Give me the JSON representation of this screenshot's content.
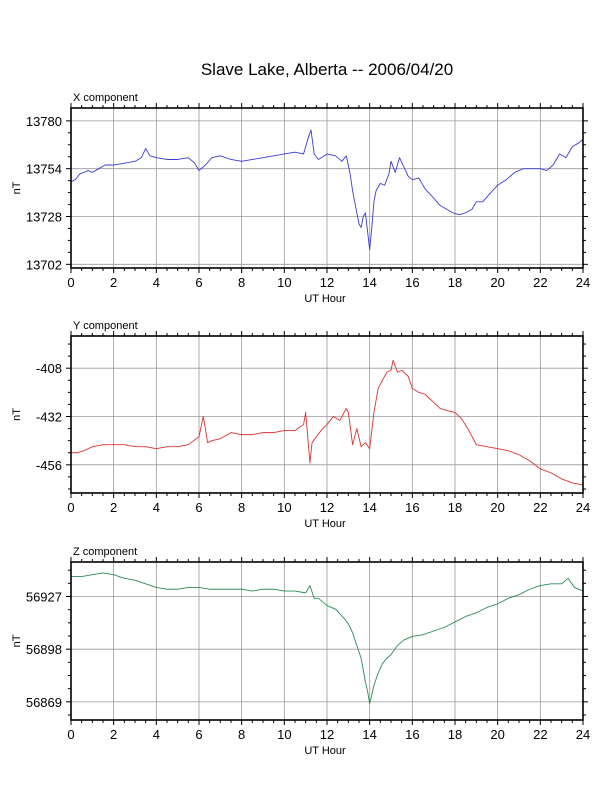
{
  "title": "Slave Lake, Alberta -- 2006/04/20",
  "chart_data": [
    {
      "type": "line",
      "panel_label": "X component",
      "xlabel": "UT Hour",
      "ylabel": "nT",
      "xlim": [
        0,
        24
      ],
      "ylim": [
        13700,
        13787
      ],
      "xticks": [
        0,
        2,
        4,
        6,
        8,
        10,
        12,
        14,
        16,
        18,
        20,
        22,
        24
      ],
      "yticks": [
        13702,
        13728,
        13754,
        13780
      ],
      "grid": true,
      "color": "#3a3ad8",
      "series": [
        {
          "x": [
            0,
            0.2,
            0.4,
            0.6,
            0.8,
            1.0,
            1.3,
            1.6,
            2.0,
            2.5,
            3.0,
            3.3,
            3.5,
            3.7,
            4.0,
            4.5,
            5.0,
            5.5,
            5.8,
            6.0,
            6.3,
            6.6,
            7.0,
            7.5,
            8.0,
            8.5,
            9.0,
            9.5,
            10.0,
            10.5,
            10.9,
            11.1,
            11.25,
            11.4,
            11.6,
            12.0,
            12.4,
            12.7,
            12.9,
            13.0,
            13.1,
            13.2,
            13.3,
            13.4,
            13.5,
            13.6,
            13.7,
            13.8,
            13.9,
            14.0,
            14.1,
            14.2,
            14.3,
            14.5,
            14.7,
            14.9,
            15.0,
            15.2,
            15.4,
            15.6,
            15.8,
            16.0,
            16.3,
            16.6,
            17.0,
            17.3,
            17.6,
            17.9,
            18.2,
            18.5,
            18.8,
            19.0,
            19.3,
            19.6,
            20.0,
            20.4,
            20.8,
            21.2,
            21.6,
            22.0,
            22.3,
            22.6,
            22.9,
            23.2,
            23.5,
            23.8,
            24.0
          ],
          "y": [
            13747,
            13748,
            13751,
            13752,
            13753,
            13752,
            13754,
            13756,
            13756,
            13757,
            13758,
            13760,
            13765,
            13761,
            13760,
            13759,
            13759,
            13760,
            13757,
            13753,
            13756,
            13760,
            13761,
            13759,
            13758,
            13759,
            13760,
            13761,
            13762,
            13763,
            13762,
            13770,
            13775,
            13762,
            13759,
            13762,
            13761,
            13758,
            13761,
            13756,
            13750,
            13742,
            13736,
            13730,
            13724,
            13722,
            13728,
            13730,
            13720,
            13710,
            13722,
            13736,
            13742,
            13746,
            13745,
            13751,
            13758,
            13752,
            13760,
            13755,
            13750,
            13748,
            13749,
            13743,
            13738,
            13734,
            13732,
            13730,
            13729,
            13730,
            13732,
            13736,
            13736,
            13740,
            13745,
            13748,
            13752,
            13754,
            13754,
            13754,
            13753,
            13756,
            13762,
            13760,
            13766,
            13768,
            13770
          ]
        }
      ]
    },
    {
      "type": "line",
      "panel_label": "Y component",
      "xlabel": "UT Hour",
      "ylabel": "nT",
      "xlim": [
        0,
        24
      ],
      "ylim": [
        -470,
        -392
      ],
      "xticks": [
        0,
        2,
        4,
        6,
        8,
        10,
        12,
        14,
        16,
        18,
        20,
        22,
        24
      ],
      "yticks": [
        -408,
        -432,
        -456
      ],
      "grid": true,
      "color": "#e03030",
      "series": [
        {
          "x": [
            0,
            0.3,
            0.6,
            1.0,
            1.5,
            2.0,
            2.5,
            3.0,
            3.5,
            4.0,
            4.5,
            5.0,
            5.5,
            6.0,
            6.2,
            6.3,
            6.4,
            6.6,
            7.0,
            7.5,
            8.0,
            8.5,
            9.0,
            9.5,
            10.0,
            10.5,
            10.9,
            11.0,
            11.2,
            11.3,
            11.5,
            11.8,
            12.0,
            12.3,
            12.6,
            12.9,
            13.0,
            13.2,
            13.4,
            13.6,
            13.8,
            14.0,
            14.2,
            14.4,
            14.6,
            14.8,
            15.0,
            15.1,
            15.3,
            15.5,
            15.8,
            16.0,
            16.3,
            16.6,
            17.0,
            17.3,
            17.6,
            18.0,
            18.3,
            18.6,
            19.0,
            19.5,
            20.0,
            20.5,
            21.0,
            21.5,
            22.0,
            22.5,
            23.0,
            23.5,
            24.0
          ],
          "y": [
            -450,
            -450,
            -449,
            -447,
            -446,
            -446,
            -446,
            -447,
            -447,
            -448,
            -447,
            -447,
            -446,
            -442,
            -432,
            -438,
            -445,
            -444,
            -443,
            -440,
            -441,
            -441,
            -440,
            -440,
            -439,
            -439,
            -436,
            -430,
            -455,
            -445,
            -442,
            -438,
            -436,
            -432,
            -434,
            -428,
            -430,
            -446,
            -438,
            -447,
            -445,
            -448,
            -430,
            -418,
            -414,
            -410,
            -409,
            -404,
            -410,
            -409,
            -412,
            -418,
            -420,
            -421,
            -425,
            -428,
            -429,
            -430,
            -433,
            -438,
            -446,
            -447,
            -448,
            -449,
            -451,
            -454,
            -458,
            -460,
            -463,
            -465,
            -466
          ]
        }
      ]
    },
    {
      "type": "line",
      "panel_label": "Z component",
      "xlabel": "UT Hour",
      "ylabel": "nT",
      "xlim": [
        0,
        24
      ],
      "ylim": [
        56859,
        56946
      ],
      "xticks": [
        0,
        2,
        4,
        6,
        8,
        10,
        12,
        14,
        16,
        18,
        20,
        22,
        24
      ],
      "yticks": [
        56927,
        56898,
        56869
      ],
      "grid": true,
      "color": "#2e8b57",
      "series": [
        {
          "x": [
            0,
            0.5,
            1.0,
            1.5,
            2.0,
            2.5,
            3.0,
            3.5,
            4.0,
            4.5,
            5.0,
            5.5,
            6.0,
            6.5,
            7.0,
            7.5,
            8.0,
            8.5,
            9.0,
            9.5,
            10.0,
            10.5,
            11.0,
            11.2,
            11.4,
            11.6,
            12.0,
            12.4,
            12.8,
            13.0,
            13.2,
            13.4,
            13.6,
            13.8,
            13.9,
            14.0,
            14.2,
            14.4,
            14.6,
            14.8,
            15.0,
            15.3,
            15.6,
            16.0,
            16.5,
            17.0,
            17.5,
            18.0,
            18.5,
            19.0,
            19.5,
            20.0,
            20.5,
            21.0,
            21.5,
            22.0,
            22.5,
            23.0,
            23.3,
            23.6,
            24.0
          ],
          "y": [
            56938,
            56938,
            56939,
            56940,
            56939,
            56937,
            56936,
            56934,
            56932,
            56931,
            56931,
            56932,
            56932,
            56931,
            56931,
            56931,
            56931,
            56930,
            56931,
            56931,
            56930,
            56930,
            56929,
            56933,
            56926,
            56926,
            56922,
            56920,
            56915,
            56912,
            56907,
            56900,
            56893,
            56880,
            56875,
            56868,
            56878,
            56885,
            56890,
            56893,
            56895,
            56900,
            56903,
            56905,
            56906,
            56908,
            56910,
            56913,
            56916,
            56918,
            56921,
            56923,
            56926,
            56928,
            56931,
            56933,
            56934,
            56934,
            56937,
            56932,
            56930
          ]
        }
      ]
    }
  ]
}
